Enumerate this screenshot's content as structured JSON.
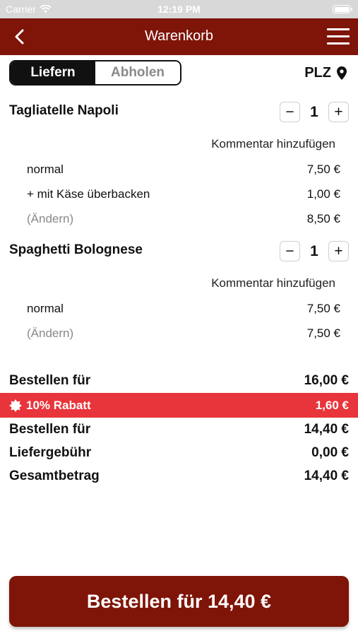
{
  "status_bar": {
    "carrier": "Carrier",
    "time": "12:19 PM"
  },
  "nav": {
    "title": "Warenkorb",
    "back_icon": "chevron-left-icon",
    "menu_icon": "hamburger-menu-icon"
  },
  "delivery_mode": {
    "options": [
      "Liefern",
      "Abholen"
    ],
    "selected": "Liefern"
  },
  "plz": {
    "label": "PLZ",
    "icon": "location-pin-icon"
  },
  "items": [
    {
      "name": "Tagliatelle Napoli",
      "quantity": "1",
      "comment_link": "Kommentar hinzufügen",
      "lines": [
        {
          "label": "normal",
          "price": "7,50 €"
        },
        {
          "label": "+ mit Käse überbacken",
          "price": "1,00 €"
        },
        {
          "label": "(Ändern)",
          "price": "8,50 €"
        }
      ]
    },
    {
      "name": "Spaghetti Bolognese",
      "quantity": "1",
      "comment_link": "Kommentar hinzufügen",
      "lines": [
        {
          "label": "normal",
          "price": "7,50 €"
        },
        {
          "label": "(Ändern)",
          "price": "7,50 €"
        }
      ]
    }
  ],
  "summary": {
    "subtotal_label": "Bestellen für",
    "subtotal_value": "16,00 €",
    "discount_label": "10% Rabatt",
    "discount_value": "1,60 €",
    "after_discount_label": "Bestellen für",
    "after_discount_value": "14,40 €",
    "delivery_fee_label": "Liefergebühr",
    "delivery_fee_value": "0,00 €",
    "total_label": "Gesamtbetrag",
    "total_value": "14,40 €"
  },
  "order_button": {
    "label": "Bestellen für 14,40 €"
  },
  "colors": {
    "brand": "#7f1408",
    "discount": "#e8343b",
    "status_bar": "#d8d8d8"
  }
}
